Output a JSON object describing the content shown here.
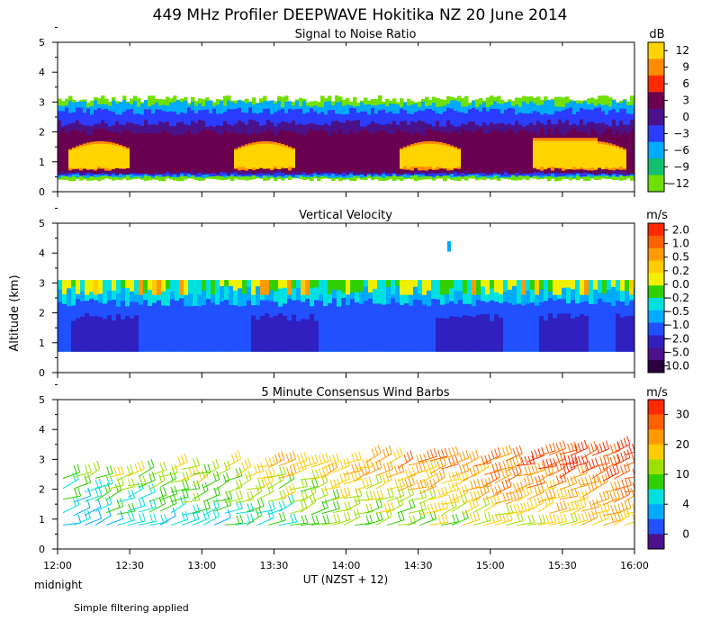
{
  "title": "449 MHz Profiler DEEPWAVE Hokitika NZ 20 June 2014",
  "footer": {
    "xaxis_title": "UT  (NZST + 12)",
    "midnight_label": "midnight",
    "filter_note": "Simple filtering applied",
    "y_axis_title": "Altitude (km)"
  },
  "chart_data": [
    {
      "type": "heatmap",
      "title": "Signal to Noise Ratio",
      "unit": "dB",
      "ylim": [
        0,
        5
      ],
      "y_ticks": [
        "0",
        "1",
        "2",
        "3",
        "4",
        "5"
      ],
      "x_ticks": [
        "12:00",
        "12:30",
        "13:00",
        "13:30",
        "14:00",
        "14:30",
        "15:00",
        "15:30",
        "16:00"
      ],
      "colorbar_labels": [
        "12",
        "9",
        "6",
        "3",
        "0",
        "−3",
        "−6",
        "−9",
        "−12"
      ],
      "colorbar_colors": [
        "#ffd400",
        "#ff8c00",
        "#ff2a00",
        "#6a0050",
        "#4a128a",
        "#2a3cff",
        "#00aaff",
        "#10c070",
        "#70e000"
      ]
    },
    {
      "type": "heatmap",
      "title": "Vertical Velocity",
      "unit": "m/s",
      "ylim": [
        0,
        5
      ],
      "y_ticks": [
        "0",
        "1",
        "2",
        "3",
        "4",
        "5"
      ],
      "x_ticks": [
        "12:00",
        "12:30",
        "13:00",
        "13:30",
        "14:00",
        "14:30",
        "15:00",
        "15:30",
        "16:00"
      ],
      "colorbar_labels": [
        "2.0",
        "1.0",
        "0.5",
        "0.2",
        "0.0",
        "−0.2",
        "−0.5",
        "−1.0",
        "−2.0",
        "−5.0",
        "−10.0"
      ],
      "colorbar_colors": [
        "#ff2a00",
        "#ff6000",
        "#ff9a00",
        "#ffcc00",
        "#f0f000",
        "#30d000",
        "#00e0e0",
        "#00aaff",
        "#2050ff",
        "#3020c0",
        "#4a128a",
        "#2a0040"
      ]
    },
    {
      "type": "scatter",
      "title": "5 Minute Consensus Wind Barbs",
      "unit": "m/s",
      "ylim": [
        0,
        5
      ],
      "y_ticks": [
        "0",
        "1",
        "2",
        "3",
        "4",
        "5"
      ],
      "x_ticks": [
        "12:00",
        "12:30",
        "13:00",
        "13:30",
        "14:00",
        "14:30",
        "15:00",
        "15:30",
        "16:00"
      ],
      "colorbar_labels": [
        "30",
        "20",
        "10",
        "4",
        "0"
      ],
      "colorbar_colors": [
        "#ff2a00",
        "#ff6000",
        "#ff9a00",
        "#ffcc00",
        "#a0e000",
        "#30d000",
        "#00e0e0",
        "#00aaff",
        "#2050ff",
        "#4a128a"
      ]
    }
  ]
}
